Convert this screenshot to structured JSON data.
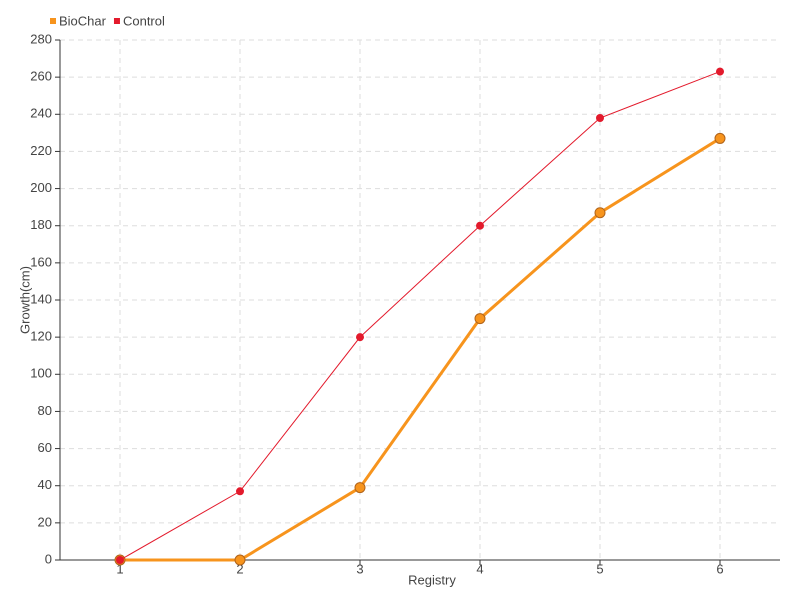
{
  "chart_data": {
    "type": "line",
    "x_label": "Registry",
    "y_label": "Growth(cm)",
    "categories": [
      "1",
      "2",
      "3",
      "4",
      "5",
      "6"
    ],
    "series": [
      {
        "name": "BioChar",
        "color": "#f7941d",
        "values": [
          0,
          0,
          39,
          130,
          187,
          227
        ]
      },
      {
        "name": "Control",
        "color": "#e31a2c",
        "values": [
          0,
          37,
          120,
          180,
          238,
          263
        ]
      }
    ],
    "ylim": [
      0,
      280
    ],
    "yticks": [
      0,
      20,
      40,
      60,
      80,
      100,
      120,
      140,
      160,
      180,
      200,
      220,
      240,
      260,
      280
    ],
    "grid": true,
    "legend": "top-left"
  }
}
